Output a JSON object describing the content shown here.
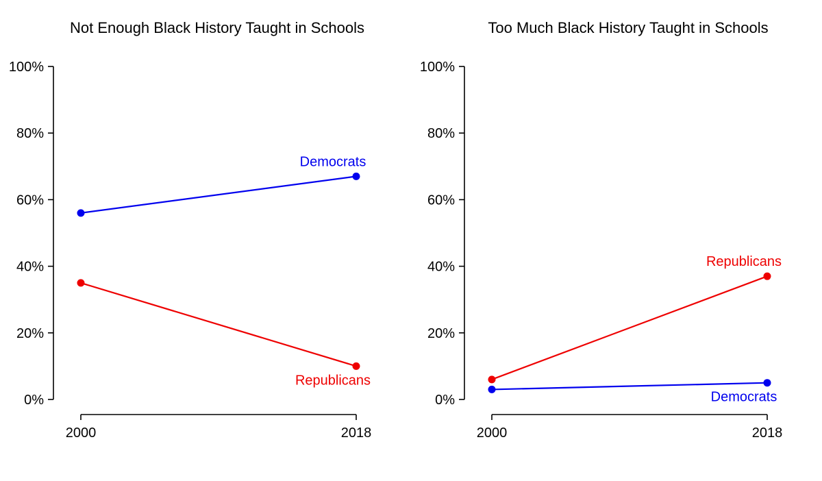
{
  "page": {
    "background_color": "#ffffff",
    "text_color": "#000000"
  },
  "palette": {
    "democrats": "#0000ee",
    "republicans": "#ee0000",
    "axis": "#000000"
  },
  "chart_data": [
    {
      "type": "line",
      "title": "Not Enough Black History Taught in Schools",
      "x": [
        2000,
        2018
      ],
      "x_tick_labels": [
        "2000",
        "2018"
      ],
      "ylim": [
        0,
        100
      ],
      "yticks": [
        0,
        20,
        40,
        60,
        80,
        100
      ],
      "ytick_labels": [
        "0%",
        "20%",
        "40%",
        "60%",
        "80%",
        "100%"
      ],
      "grid": false,
      "legend_position": "inline-labels",
      "marker": "filled-circle",
      "series": [
        {
          "name": "Democrats",
          "color": "#0000ee",
          "values": [
            56,
            67
          ],
          "label_position": "above-left-of-last-point"
        },
        {
          "name": "Republicans",
          "color": "#ee0000",
          "values": [
            35,
            10
          ],
          "label_position": "below-left-of-last-point"
        }
      ]
    },
    {
      "type": "line",
      "title": "Too Much Black History Taught in Schools",
      "x": [
        2000,
        2018
      ],
      "x_tick_labels": [
        "2000",
        "2018"
      ],
      "ylim": [
        0,
        100
      ],
      "yticks": [
        0,
        20,
        40,
        60,
        80,
        100
      ],
      "ytick_labels": [
        "0%",
        "20%",
        "40%",
        "60%",
        "80%",
        "100%"
      ],
      "grid": false,
      "legend_position": "inline-labels",
      "marker": "filled-circle",
      "series": [
        {
          "name": "Republicans",
          "color": "#ee0000",
          "values": [
            6,
            37
          ],
          "label_position": "above-left-of-last-point"
        },
        {
          "name": "Democrats",
          "color": "#0000ee",
          "values": [
            3,
            5
          ],
          "label_position": "below-left-of-last-point"
        }
      ]
    }
  ]
}
